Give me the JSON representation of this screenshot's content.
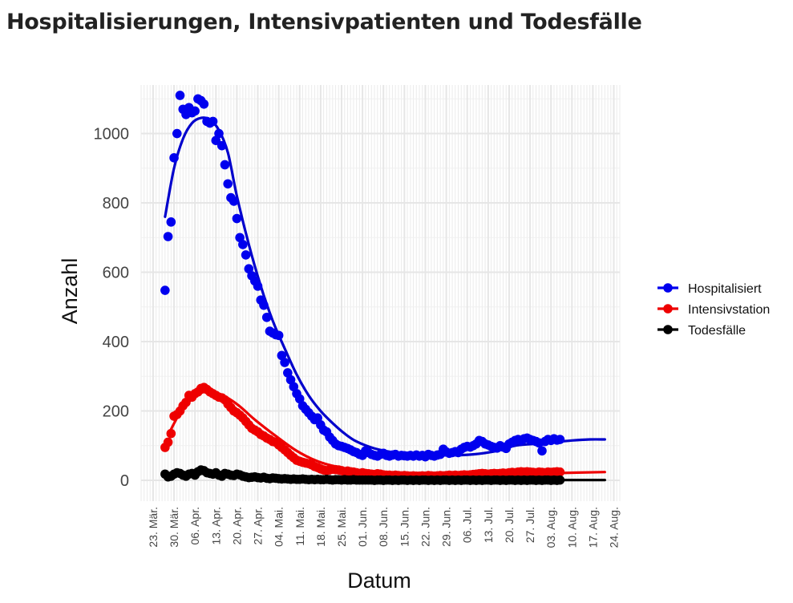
{
  "chart_data": {
    "type": "scatter",
    "title": "Hospitalisierungen, Intensivpatienten und Todesfälle",
    "xlabel": "Datum",
    "ylabel": "Anzahl",
    "x_start_date": "2020-03-23",
    "x_end_date": "2020-08-24",
    "xlim": [
      "2020-03-19",
      "2020-08-26"
    ],
    "ylim": [
      -60,
      1140
    ],
    "yticks": [
      0,
      200,
      400,
      600,
      800,
      1000
    ],
    "xtick_labels": [
      "23. Mär.",
      "30. Mär.",
      "06. Apr.",
      "13. Apr.",
      "20. Apr.",
      "27. Apr.",
      "04. Mai.",
      "11. Mai.",
      "18. Mai.",
      "25. Mai.",
      "01. Jun.",
      "08. Jun.",
      "15. Jun.",
      "22. Jun.",
      "29. Jun.",
      "06. Jul.",
      "13. Jul.",
      "20. Jul.",
      "27. Jul.",
      "03. Aug.",
      "10. Aug.",
      "17. Aug.",
      "24. Aug."
    ],
    "grid": true,
    "legend_position": "right",
    "series": [
      {
        "name": "Hospitalisiert",
        "color": "#0000ee",
        "start_date": "2020-03-27",
        "values": [
          548,
          703,
          745,
          930,
          1000,
          1110,
          1070,
          1055,
          1075,
          1060,
          1065,
          1100,
          1095,
          1085,
          1035,
          1030,
          1035,
          980,
          1000,
          965,
          910,
          855,
          815,
          805,
          755,
          700,
          680,
          650,
          610,
          590,
          575,
          560,
          520,
          505,
          470,
          430,
          425,
          420,
          418,
          360,
          340,
          310,
          290,
          270,
          250,
          235,
          215,
          205,
          195,
          185,
          175,
          180,
          160,
          145,
          140,
          125,
          115,
          105,
          100,
          98,
          95,
          92,
          88,
          83,
          80,
          75,
          72,
          85,
          80,
          75,
          72,
          70,
          75,
          78,
          72,
          70,
          73,
          75,
          70,
          72,
          71,
          70,
          72,
          70,
          73,
          70,
          72,
          68,
          75,
          72,
          70,
          73,
          75,
          90,
          82,
          78,
          80,
          83,
          80,
          90,
          95,
          98,
          96,
          100,
          105,
          115,
          112,
          105,
          102,
          98,
          95,
          93,
          100,
          96,
          92,
          105,
          110,
          115,
          118,
          115,
          120,
          122,
          118,
          115,
          112,
          108,
          85,
          112,
          118,
          115,
          120,
          116,
          118
        ]
      },
      {
        "name": "Intensivstation",
        "color": "#ee0000",
        "start_date": "2020-03-27",
        "values": [
          95,
          110,
          135,
          185,
          190,
          200,
          215,
          225,
          245,
          240,
          250,
          255,
          265,
          268,
          262,
          255,
          250,
          245,
          240,
          238,
          232,
          220,
          210,
          200,
          195,
          188,
          180,
          170,
          160,
          150,
          145,
          140,
          132,
          128,
          122,
          118,
          112,
          110,
          102,
          95,
          88,
          80,
          72,
          65,
          58,
          55,
          52,
          50,
          48,
          45,
          40,
          37,
          33,
          30,
          28,
          30,
          32,
          31,
          30,
          28,
          25,
          27,
          25,
          24,
          22,
          20,
          22,
          20,
          19,
          18,
          17,
          19,
          18,
          16,
          15,
          15,
          14,
          15,
          14,
          13,
          14,
          13,
          12,
          13,
          12,
          12,
          13,
          12,
          14,
          13,
          12,
          13,
          14,
          13,
          14,
          15,
          14,
          15,
          14,
          15,
          16,
          15,
          16,
          17,
          18,
          19,
          20,
          19,
          18,
          19,
          20,
          19,
          20,
          21,
          20,
          22,
          23,
          22,
          24,
          25,
          24,
          25,
          24,
          23,
          22,
          24,
          23,
          22,
          24,
          23,
          24,
          25,
          24
        ]
      },
      {
        "name": "Todesfälle",
        "color": "#000000",
        "start_date": "2020-03-27",
        "values": [
          18,
          10,
          12,
          18,
          22,
          20,
          15,
          12,
          18,
          20,
          15,
          25,
          30,
          28,
          22,
          20,
          18,
          22,
          15,
          12,
          20,
          18,
          15,
          14,
          18,
          16,
          12,
          10,
          8,
          9,
          10,
          8,
          7,
          9,
          6,
          5,
          7,
          6,
          5,
          4,
          5,
          4,
          3,
          4,
          3,
          3,
          4,
          3,
          2,
          3,
          2,
          3,
          2,
          2,
          3,
          2,
          1,
          2,
          2,
          1,
          2,
          1,
          1,
          2,
          1,
          1,
          1,
          1,
          1,
          1,
          0,
          1,
          1,
          0,
          1,
          1,
          0,
          1,
          0,
          1,
          1,
          0,
          1,
          0,
          1,
          0,
          1,
          1,
          0,
          1,
          0,
          1,
          0,
          1,
          1,
          0,
          1,
          0,
          1,
          0,
          1,
          1,
          0,
          1,
          0,
          1,
          0,
          1,
          1,
          0,
          1,
          1,
          0,
          1,
          0,
          1,
          1,
          0,
          1,
          0,
          1,
          0,
          1,
          1,
          0,
          1,
          0,
          1,
          1,
          0,
          1,
          0,
          1
        ]
      }
    ],
    "smooth_lines": [
      {
        "series": "Hospitalisiert",
        "color": "#0000cc",
        "dates": [
          "2020-03-27",
          "2020-03-30",
          "2020-04-02",
          "2020-04-05",
          "2020-04-08",
          "2020-04-11",
          "2020-04-14",
          "2020-04-17",
          "2020-04-20",
          "2020-04-24",
          "2020-04-28",
          "2020-05-02",
          "2020-05-06",
          "2020-05-10",
          "2020-05-14",
          "2020-05-18",
          "2020-05-22",
          "2020-05-26",
          "2020-05-30",
          "2020-06-05",
          "2020-06-12",
          "2020-06-20",
          "2020-06-30",
          "2020-07-08",
          "2020-07-16",
          "2020-07-22",
          "2020-07-28",
          "2020-08-04",
          "2020-08-10",
          "2020-08-16",
          "2020-08-21"
        ],
        "values": [
          760,
          900,
          985,
          1030,
          1045,
          1040,
          1010,
          945,
          820,
          680,
          560,
          460,
          380,
          305,
          245,
          200,
          165,
          135,
          112,
          92,
          80,
          74,
          72,
          75,
          85,
          100,
          105,
          110,
          115,
          118,
          118
        ]
      },
      {
        "series": "Intensivstation",
        "color": "#ee0000",
        "dates": [
          "2020-03-28",
          "2020-04-01",
          "2020-04-05",
          "2020-04-09",
          "2020-04-14",
          "2020-04-20",
          "2020-04-26",
          "2020-05-03",
          "2020-05-10",
          "2020-05-17",
          "2020-05-24",
          "2020-06-01",
          "2020-06-10",
          "2020-06-20",
          "2020-07-01",
          "2020-07-12",
          "2020-07-24",
          "2020-08-05",
          "2020-08-21"
        ],
        "values": [
          130,
          195,
          235,
          255,
          250,
          220,
          175,
          128,
          85,
          55,
          38,
          28,
          20,
          16,
          14,
          14,
          17,
          21,
          24
        ]
      },
      {
        "series": "Todesfälle",
        "color": "#000000",
        "dates": [
          "2020-03-27",
          "2020-04-05",
          "2020-04-15",
          "2020-04-25",
          "2020-05-05",
          "2020-05-15",
          "2020-05-25",
          "2020-06-10",
          "2020-07-01",
          "2020-08-21"
        ],
        "values": [
          15,
          18,
          20,
          14,
          8,
          4,
          2,
          1,
          1,
          1
        ]
      }
    ]
  }
}
